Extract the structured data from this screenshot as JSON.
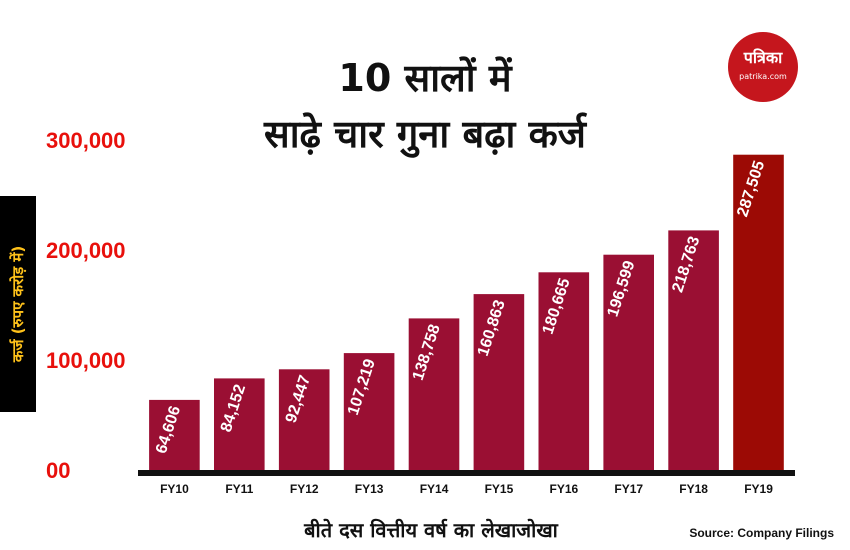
{
  "header": {
    "title_line1": "10 सालों में",
    "title_line2": "साढ़े चार गुना बढ़ा कर्ज"
  },
  "logo": {
    "name": "पत्रिका",
    "site": "patrika.com"
  },
  "source": "Source: Company Filings",
  "colors": {
    "bar": "#9a0f33",
    "bar_highlight": "#9c0a05",
    "tick": "#e8100c",
    "ylabel_text": "#ffc21a",
    "baseline": "#111111"
  },
  "chart_data": {
    "type": "bar",
    "categories": [
      "FY10",
      "FY11",
      "FY12",
      "FY13",
      "FY14",
      "FY15",
      "FY16",
      "FY17",
      "FY18",
      "FY19"
    ],
    "values": [
      64606,
      84152,
      92447,
      107219,
      138758,
      160863,
      180665,
      196599,
      218763,
      287505
    ],
    "data_labels": [
      "64,606",
      "84,152",
      "92,447",
      "107,219",
      "138,758",
      "160,863",
      "180,665",
      "196,599",
      "218,763",
      "287,505"
    ],
    "ylabel": "कर्ज (रुपए करोड़ में)",
    "xlabel": "बीते दस वित्तीय वर्ष का लेखाजोखा",
    "yticks": [
      0,
      100000,
      200000,
      300000
    ],
    "ytick_labels": [
      "00",
      "100,000",
      "200,000",
      "300,000"
    ],
    "ylim": [
      0,
      300000
    ],
    "grid": false,
    "legend": false
  }
}
